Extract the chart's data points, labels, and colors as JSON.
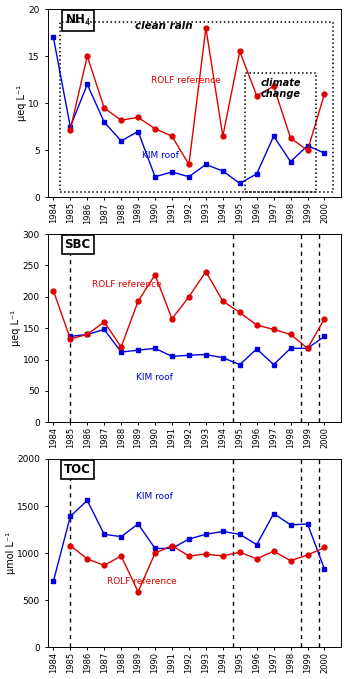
{
  "color_kim": "#0000dd",
  "color_rolf": "#dd0000",
  "nh4_kim_x": [
    1984,
    1985,
    1986,
    1987,
    1988,
    1989,
    1990,
    1991,
    1992,
    1993,
    1994,
    1995,
    1996,
    1997,
    1998,
    1999,
    2000
  ],
  "nh4_kim_v": [
    17.0,
    7.5,
    12.0,
    8.0,
    6.0,
    7.0,
    2.2,
    2.7,
    2.2,
    3.5,
    2.8,
    1.5,
    2.5,
    6.5,
    3.8,
    5.5,
    4.7
  ],
  "nh4_rolf_x": [
    1985,
    1986,
    1987,
    1988,
    1989,
    1990,
    1991,
    1992,
    1993,
    1994,
    1995,
    1996,
    1997,
    1998,
    1999,
    2000
  ],
  "nh4_rolf_v": [
    7.2,
    15.0,
    9.5,
    8.2,
    8.5,
    7.3,
    6.5,
    3.5,
    18.0,
    6.5,
    15.5,
    10.8,
    11.8,
    6.3,
    5.0,
    11.0
  ],
  "sbc_kim_x": [
    1985,
    1986,
    1987,
    1988,
    1989,
    1990,
    1991,
    1992,
    1993,
    1994,
    1995,
    1996,
    1997,
    1998,
    1999,
    2000
  ],
  "sbc_kim_v": [
    137,
    140,
    148,
    112,
    115,
    118,
    105,
    107,
    108,
    103,
    92,
    117,
    92,
    118,
    118,
    137
  ],
  "sbc_rolf_x": [
    1984,
    1985,
    1986,
    1987,
    1988,
    1989,
    1990,
    1991,
    1992,
    1993,
    1994,
    1995,
    1996,
    1997,
    1998,
    1999,
    2000
  ],
  "sbc_rolf_v": [
    210,
    133,
    140,
    160,
    120,
    193,
    235,
    165,
    200,
    240,
    193,
    175,
    155,
    148,
    140,
    118,
    165
  ],
  "toc_kim_x": [
    1984,
    1985,
    1986,
    1987,
    1988,
    1989,
    1990,
    1991,
    1992,
    1993,
    1994,
    1995,
    1996,
    1997,
    1998,
    1999,
    2000
  ],
  "toc_kim_v": [
    700,
    1390,
    1560,
    1200,
    1175,
    1310,
    1050,
    1050,
    1150,
    1200,
    1230,
    1200,
    1090,
    1420,
    1300,
    1310,
    830
  ],
  "toc_rolf_x": [
    1985,
    1986,
    1987,
    1988,
    1989,
    1990,
    1991,
    1992,
    1993,
    1994,
    1995,
    1996,
    1997,
    1998,
    1999,
    2000
  ],
  "toc_rolf_v": [
    1080,
    940,
    870,
    970,
    590,
    1000,
    1080,
    970,
    990,
    970,
    1010,
    940,
    1020,
    920,
    980,
    1060
  ],
  "nh4_ylim": [
    0,
    20
  ],
  "sbc_ylim": [
    0,
    300
  ],
  "toc_ylim": [
    0,
    2000
  ],
  "nh4_yticks": [
    0,
    5,
    10,
    15,
    20
  ],
  "sbc_yticks": [
    0,
    50,
    100,
    150,
    200,
    250,
    300
  ],
  "toc_yticks": [
    0,
    500,
    1000,
    1500,
    2000
  ],
  "nh4_ylabel": "μeq L⁻¹",
  "sbc_ylabel": "μeq L⁻¹",
  "toc_ylabel": "μmol L⁻¹",
  "sbc_vlines": [
    1985,
    1994.6,
    1998.6,
    1999.7
  ],
  "toc_vlines": [
    1985,
    1994.6,
    1998.6,
    1999.7
  ]
}
